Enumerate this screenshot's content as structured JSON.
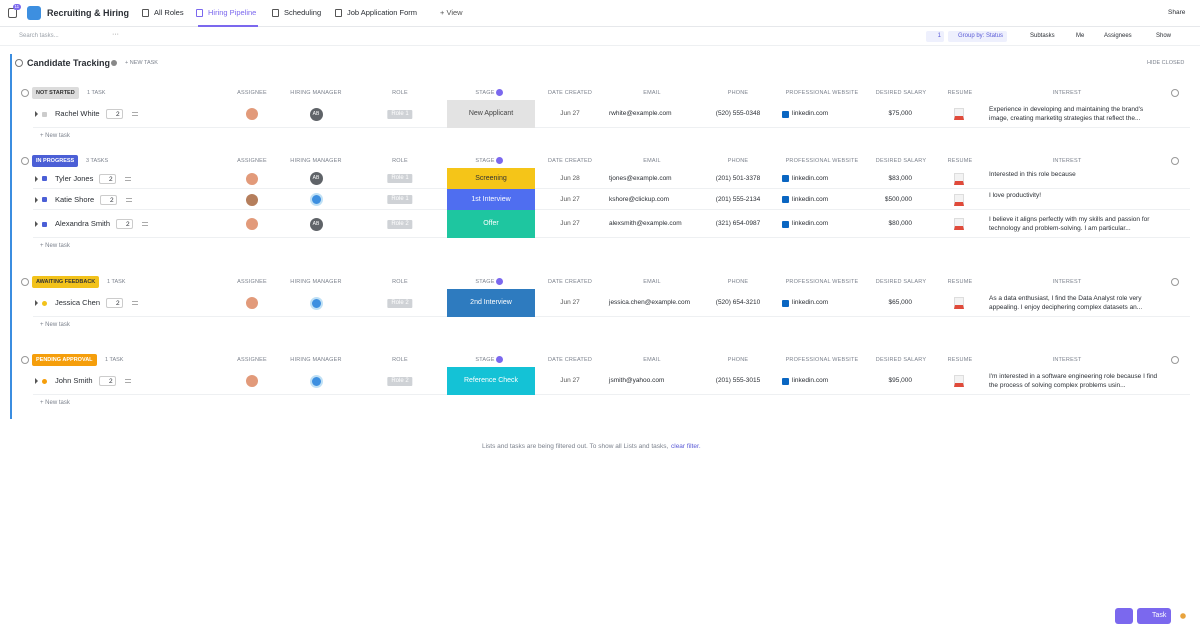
{
  "header": {
    "badge": "11",
    "workspace": "Recruiting & Hiring",
    "tabs": [
      "All Roles",
      "Hiring Pipeline",
      "Scheduling",
      "Job Application Form"
    ],
    "add_view": "+ View",
    "share": "Share"
  },
  "toolbar": {
    "search": "Search tasks...",
    "filter_count": "1",
    "group_by": "Group by: Status",
    "subtasks": "Subtasks",
    "me": "Me",
    "assignees": "Assignees",
    "show": "Show"
  },
  "list": {
    "title": "Candidate Tracking",
    "new_task": "+ NEW TASK",
    "hide_closed": "HIDE CLOSED",
    "columns": [
      "ASSIGNEE",
      "HIRING MANAGER",
      "ROLE",
      "STAGE",
      "DATE CREATED",
      "EMAIL",
      "PHONE",
      "PROFESSIONAL WEBSITE",
      "DESIRED SALARY",
      "RESUME",
      "INTEREST"
    ],
    "groups": [
      {
        "name": "NOT STARTED",
        "count": "1 TASK",
        "color": "#dcdcdc",
        "text_color": "#333333",
        "new_task": "+ New task",
        "rows": [
          {
            "name": "Rachel White",
            "subtasks": "2",
            "manager": "AB",
            "role": "Role 1",
            "stage": "New Applicant",
            "stage_color": "#e3e3e3",
            "stage_text": "#444444",
            "date": "Jun 27",
            "email": "rwhite@example.com",
            "phone": "(520) 555-0348",
            "website": "linkedin.com",
            "salary": "$75,000",
            "interest": "Experience in developing and maintaining the brand's image, creating marketitg strategies that reflect the..."
          }
        ]
      },
      {
        "name": "IN PROGRESS",
        "count": "3 TASKS",
        "color": "#4b5fd6",
        "text_color": "#ffffff",
        "new_task": "+ New task",
        "rows": [
          {
            "name": "Tyler Jones",
            "subtasks": "2",
            "manager": "AB",
            "role": "Role 1",
            "stage": "Screening",
            "stage_color": "#f5c518",
            "stage_text": "#333333",
            "date": "Jun 28",
            "email": "tjones@example.com",
            "phone": "(201) 501-3378",
            "website": "linkedin.com",
            "salary": "$83,000",
            "interest": "Interested in this role because"
          },
          {
            "name": "Katie Shore",
            "subtasks": "2",
            "manager": null,
            "role": "Role 1",
            "stage": "1st Interview",
            "stage_color": "#4f6ef0",
            "stage_text": "#ffffff",
            "date": "Jun 27",
            "email": "kshore@clickup.com",
            "phone": "(201) 555-2134",
            "website": "linkedin.com",
            "salary": "$500,000",
            "interest": "I love productivity!"
          },
          {
            "name": "Alexandra Smith",
            "subtasks": "2",
            "manager": "AB",
            "role": "Role 2",
            "stage": "Offer",
            "stage_color": "#1ec6a0",
            "stage_text": "#ffffff",
            "date": "Jun 27",
            "email": "alexsmith@example.com",
            "phone": "(321) 654-0987",
            "website": "linkedin.com",
            "salary": "$80,000",
            "interest": "I believe it aligns perfectly with my skills and passion for technology and problem-solving. I am particular..."
          }
        ]
      },
      {
        "name": "AWAITING FEEDBACK",
        "count": "1 TASK",
        "color": "#f2c21b",
        "text_color": "#333333",
        "new_task": "+ New task",
        "rows": [
          {
            "name": "Jessica Chen",
            "subtasks": "2",
            "manager": null,
            "role": "Role 2",
            "stage": "2nd Interview",
            "stage_color": "#2e7bbf",
            "stage_text": "#ffffff",
            "date": "Jun 27",
            "email": "jessica.chen@example.com",
            "phone": "(520) 654-3210",
            "website": "linkedin.com",
            "salary": "$65,000",
            "interest": "As a data enthusiast, I find the Data Analyst role very appealing. I enjoy deciphering complex datasets an..."
          }
        ]
      },
      {
        "name": "PENDING APPROVAL",
        "count": "1 TASK",
        "color": "#f59e0b",
        "text_color": "#ffffff",
        "new_task": "+ New task",
        "rows": [
          {
            "name": "John Smith",
            "subtasks": "2",
            "manager": null,
            "role": "Role 2",
            "stage": "Reference Check",
            "stage_color": "#14c2d6",
            "stage_text": "#ffffff",
            "date": "Jun 27",
            "email": "jsmith@yahoo.com",
            "phone": "(201) 555-3015",
            "website": "linkedin.com",
            "salary": "$95,000",
            "interest": "I'm interested in a software engineering role because I find the process of solving complex problems usin..."
          }
        ]
      }
    ]
  },
  "footer": {
    "message": "Lists and tasks are being filtered out. To show all Lists and tasks,",
    "link": "clear filter."
  },
  "fab": {
    "task": "Task"
  }
}
